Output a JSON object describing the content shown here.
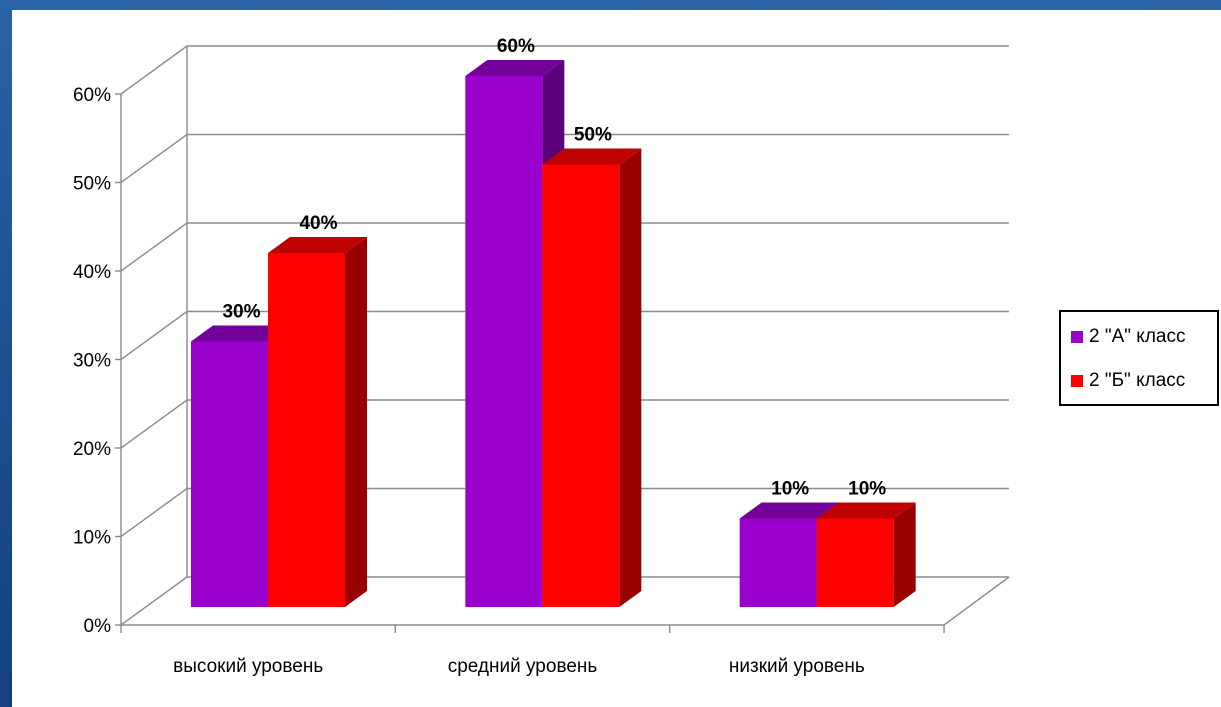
{
  "chart_data": {
    "type": "bar",
    "categories": [
      "высокий уровень",
      "средний уровень",
      "низкий уровень"
    ],
    "series": [
      {
        "name": "2 \"А\" класс",
        "values": [
          30,
          60,
          10
        ],
        "color": "#9900cc"
      },
      {
        "name": "2 \"Б\" класс",
        "values": [
          40,
          50,
          10
        ],
        "color": "#ff0000"
      }
    ],
    "data_labels": [
      [
        "30%",
        "60%",
        "10%"
      ],
      [
        "40%",
        "50%",
        "10%"
      ]
    ],
    "y_ticks": [
      "0%",
      "10%",
      "20%",
      "30%",
      "40%",
      "50%",
      "60%"
    ],
    "ylim": [
      0,
      60
    ],
    "grid": true,
    "style": "3d-clustered-column",
    "legend_position": "right"
  }
}
